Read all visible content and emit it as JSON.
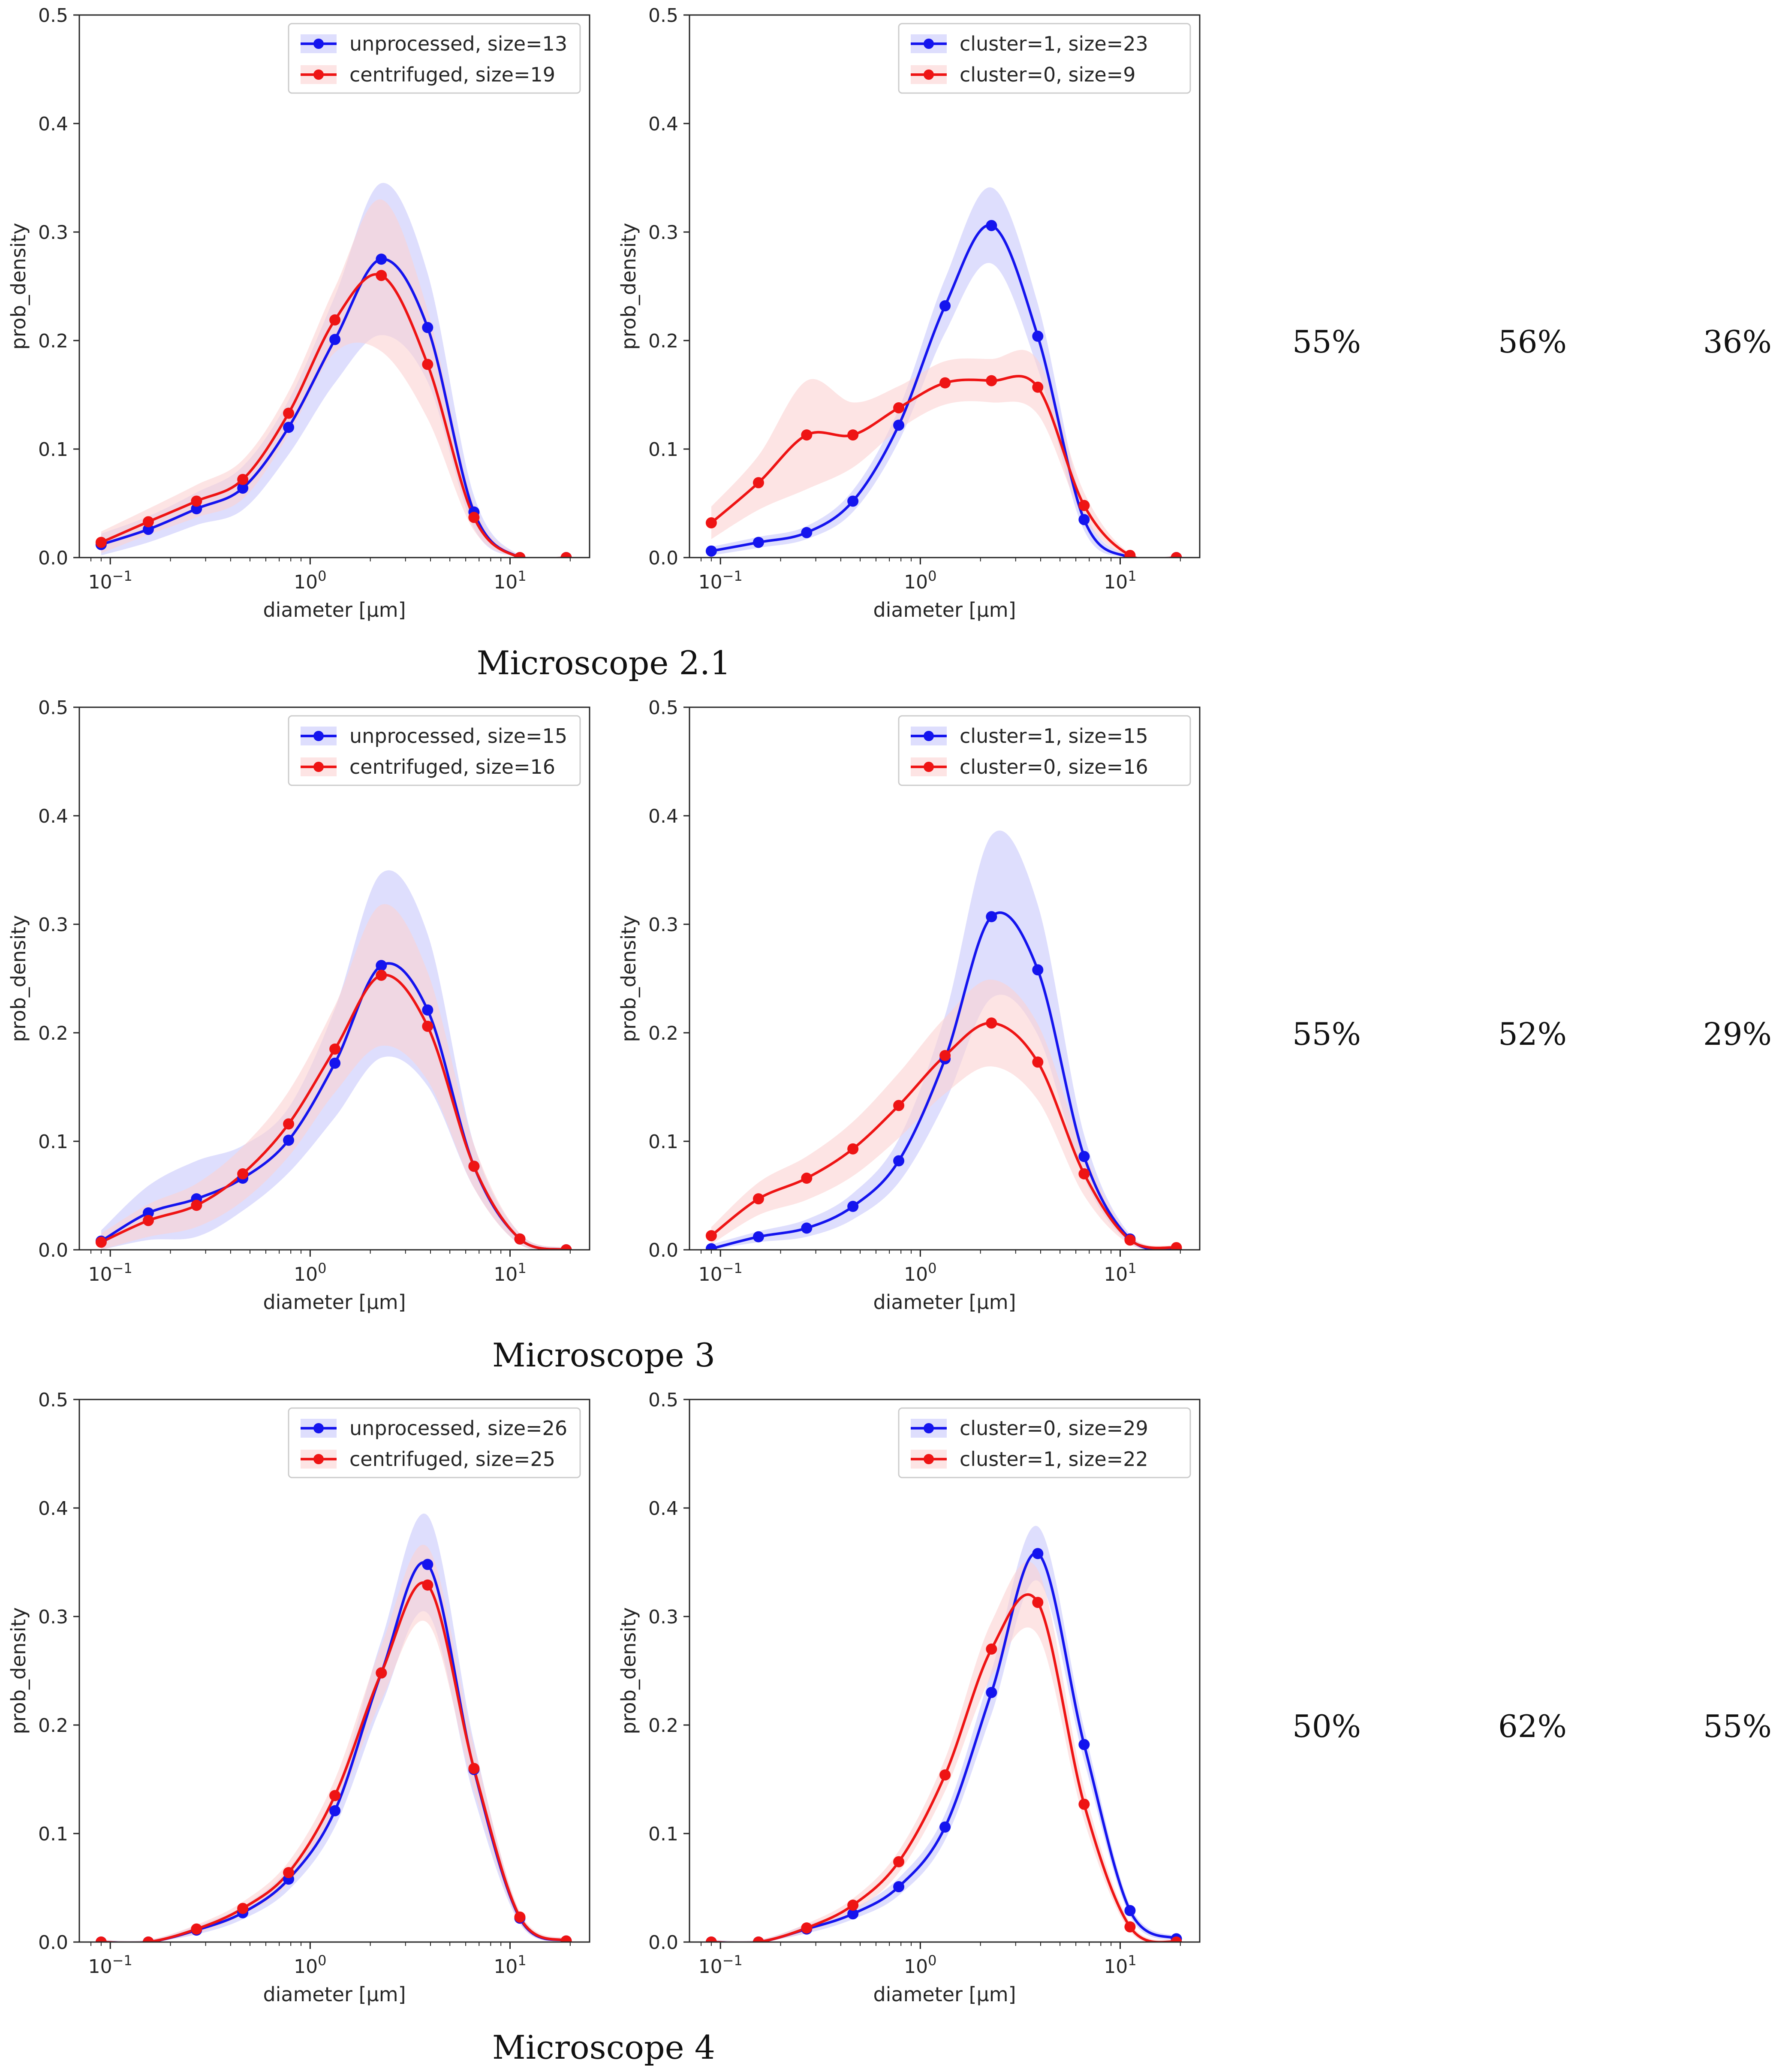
{
  "figure": {
    "captions": [
      "Microscope 2.1",
      "Microscope 3",
      "Microscope 4"
    ],
    "percentages": [
      [
        "55%",
        "56%",
        "36%"
      ],
      [
        "55%",
        "52%",
        "29%"
      ],
      [
        "50%",
        "62%",
        "55%"
      ]
    ]
  },
  "colors": {
    "blue": "#1414ee",
    "red": "#ee1414",
    "blue_band": "#c8c8fb",
    "red_band": "#fbd2d2"
  },
  "axis_labels": {
    "x": "diameter [µm]",
    "y": "prob_density"
  },
  "y_tick_labels": [
    "0.0",
    "0.1",
    "0.2",
    "0.3",
    "0.4",
    "0.5"
  ],
  "x_tick_labels": [
    {
      "base": "10",
      "exp": "−1"
    },
    {
      "base": "10",
      "exp": "0"
    },
    {
      "base": "10",
      "exp": "1"
    }
  ],
  "chart_data": [
    {
      "type": "line",
      "xscale": "log",
      "xlim": [
        0.07,
        25
      ],
      "ylim": [
        0,
        0.5
      ],
      "xlabel": "diameter [µm]",
      "ylabel": "prob_density",
      "legend": "top-right",
      "x": [
        0.09,
        0.155,
        0.27,
        0.46,
        0.78,
        1.33,
        2.27,
        3.87,
        6.6,
        11.2,
        19.1
      ],
      "series": [
        {
          "name": "unprocessed, size=13",
          "color": "blue",
          "values": [
            0.012,
            0.026,
            0.045,
            0.064,
            0.12,
            0.201,
            0.275,
            0.212,
            0.042,
            0.0,
            0.0
          ],
          "band": [
            0.01,
            0.012,
            0.015,
            0.02,
            0.025,
            0.04,
            0.07,
            0.05,
            0.015,
            0.002,
            0.002
          ]
        },
        {
          "name": "centrifuged, size=19",
          "color": "red",
          "values": [
            0.014,
            0.033,
            0.052,
            0.072,
            0.133,
            0.219,
            0.26,
            0.178,
            0.037,
            0.0,
            0.0
          ],
          "band": [
            0.01,
            0.012,
            0.015,
            0.018,
            0.02,
            0.03,
            0.07,
            0.05,
            0.012,
            0.002,
            0.002
          ]
        }
      ]
    },
    {
      "type": "line",
      "xscale": "log",
      "xlim": [
        0.07,
        25
      ],
      "ylim": [
        0,
        0.5
      ],
      "xlabel": "diameter [µm]",
      "ylabel": "prob_density",
      "legend": "top-right",
      "x": [
        0.09,
        0.155,
        0.27,
        0.46,
        0.78,
        1.33,
        2.27,
        3.87,
        6.6,
        11.2,
        19.1
      ],
      "series": [
        {
          "name": "cluster=1, size=23",
          "color": "blue",
          "values": [
            0.006,
            0.014,
            0.023,
            0.052,
            0.122,
            0.232,
            0.306,
            0.204,
            0.035,
            0.0,
            0.0
          ],
          "band": [
            0.004,
            0.005,
            0.006,
            0.01,
            0.015,
            0.025,
            0.035,
            0.03,
            0.01,
            0.002,
            0.002
          ]
        },
        {
          "name": "cluster=0, size=9",
          "color": "red",
          "values": [
            0.032,
            0.069,
            0.113,
            0.113,
            0.138,
            0.161,
            0.163,
            0.157,
            0.048,
            0.002,
            0.0
          ],
          "band": [
            0.015,
            0.025,
            0.05,
            0.03,
            0.02,
            0.02,
            0.02,
            0.025,
            0.012,
            0.002,
            0.002
          ]
        }
      ]
    },
    {
      "type": "line",
      "xscale": "log",
      "xlim": [
        0.07,
        25
      ],
      "ylim": [
        0,
        0.5
      ],
      "xlabel": "diameter [µm]",
      "ylabel": "prob_density",
      "legend": "top-right",
      "x": [
        0.09,
        0.155,
        0.27,
        0.46,
        0.78,
        1.33,
        2.27,
        3.87,
        6.6,
        11.2,
        19.1
      ],
      "series": [
        {
          "name": "unprocessed, size=15",
          "color": "blue",
          "values": [
            0.008,
            0.034,
            0.047,
            0.066,
            0.101,
            0.172,
            0.262,
            0.221,
            0.077,
            0.01,
            0.0
          ],
          "band": [
            0.01,
            0.025,
            0.035,
            0.03,
            0.03,
            0.05,
            0.085,
            0.07,
            0.02,
            0.005,
            0.002
          ]
        },
        {
          "name": "centrifuged, size=16",
          "color": "red",
          "values": [
            0.007,
            0.027,
            0.041,
            0.07,
            0.116,
            0.185,
            0.253,
            0.206,
            0.077,
            0.01,
            0.0
          ],
          "band": [
            0.008,
            0.015,
            0.02,
            0.025,
            0.03,
            0.04,
            0.065,
            0.05,
            0.02,
            0.005,
            0.002
          ]
        }
      ]
    },
    {
      "type": "line",
      "xscale": "log",
      "xlim": [
        0.07,
        25
      ],
      "ylim": [
        0,
        0.5
      ],
      "xlabel": "diameter [µm]",
      "ylabel": "prob_density",
      "legend": "top-right",
      "x": [
        0.09,
        0.155,
        0.27,
        0.46,
        0.78,
        1.33,
        2.27,
        3.87,
        6.6,
        11.2,
        19.1
      ],
      "series": [
        {
          "name": "cluster=1, size=15",
          "color": "blue",
          "values": [
            0.001,
            0.012,
            0.02,
            0.04,
            0.082,
            0.176,
            0.307,
            0.258,
            0.086,
            0.01,
            0.0
          ],
          "band": [
            0.004,
            0.005,
            0.008,
            0.012,
            0.02,
            0.04,
            0.075,
            0.06,
            0.02,
            0.004,
            0.002
          ]
        },
        {
          "name": "cluster=0, size=16",
          "color": "red",
          "values": [
            0.013,
            0.047,
            0.066,
            0.093,
            0.133,
            0.179,
            0.209,
            0.173,
            0.07,
            0.009,
            0.002
          ],
          "band": [
            0.008,
            0.015,
            0.02,
            0.025,
            0.03,
            0.035,
            0.04,
            0.035,
            0.02,
            0.004,
            0.002
          ]
        }
      ]
    },
    {
      "type": "line",
      "xscale": "log",
      "xlim": [
        0.07,
        25
      ],
      "ylim": [
        0,
        0.5
      ],
      "xlabel": "diameter [µm]",
      "ylabel": "prob_density",
      "legend": "top-right",
      "x": [
        0.09,
        0.155,
        0.27,
        0.46,
        0.78,
        1.33,
        2.27,
        3.87,
        6.6,
        11.2,
        19.1
      ],
      "series": [
        {
          "name": "unprocessed, size=26",
          "color": "blue",
          "values": [
            0.0,
            0.0,
            0.011,
            0.027,
            0.058,
            0.121,
            0.248,
            0.348,
            0.159,
            0.022,
            0.001
          ],
          "band": [
            0.002,
            0.002,
            0.004,
            0.006,
            0.01,
            0.015,
            0.03,
            0.045,
            0.025,
            0.005,
            0.002
          ]
        },
        {
          "name": "centrifuged, size=25",
          "color": "red",
          "values": [
            0.0,
            0.0,
            0.012,
            0.031,
            0.064,
            0.135,
            0.248,
            0.329,
            0.16,
            0.023,
            0.001
          ],
          "band": [
            0.002,
            0.002,
            0.004,
            0.006,
            0.01,
            0.015,
            0.025,
            0.035,
            0.02,
            0.005,
            0.002
          ]
        }
      ]
    },
    {
      "type": "line",
      "xscale": "log",
      "xlim": [
        0.07,
        25
      ],
      "ylim": [
        0,
        0.5
      ],
      "xlabel": "diameter [µm]",
      "ylabel": "prob_density",
      "legend": "top-right",
      "x": [
        0.09,
        0.155,
        0.27,
        0.46,
        0.78,
        1.33,
        2.27,
        3.87,
        6.6,
        11.2,
        19.1
      ],
      "series": [
        {
          "name": "cluster=0, size=29",
          "color": "blue",
          "values": [
            0.0,
            0.0,
            0.012,
            0.026,
            0.051,
            0.106,
            0.23,
            0.358,
            0.182,
            0.029,
            0.003
          ],
          "band": [
            0.002,
            0.002,
            0.004,
            0.005,
            0.008,
            0.012,
            0.02,
            0.025,
            0.015,
            0.005,
            0.002
          ]
        },
        {
          "name": "cluster=1, size=22",
          "color": "red",
          "values": [
            0.0,
            0.0,
            0.013,
            0.034,
            0.074,
            0.154,
            0.27,
            0.313,
            0.127,
            0.014,
            0.0
          ],
          "band": [
            0.002,
            0.002,
            0.004,
            0.006,
            0.01,
            0.015,
            0.025,
            0.03,
            0.015,
            0.004,
            0.002
          ]
        }
      ]
    }
  ]
}
